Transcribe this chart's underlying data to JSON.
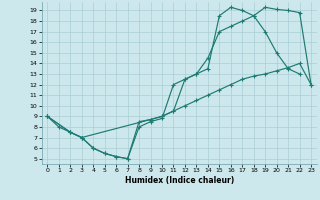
{
  "xlabel": "Humidex (Indice chaleur)",
  "bg_color": "#cce8ec",
  "grid_color": "#aacdd4",
  "line_color": "#1e7a72",
  "xlim": [
    -0.5,
    23.5
  ],
  "ylim": [
    4.5,
    19.8
  ],
  "xticks": [
    0,
    1,
    2,
    3,
    4,
    5,
    6,
    7,
    8,
    9,
    10,
    11,
    12,
    13,
    14,
    15,
    16,
    17,
    18,
    19,
    20,
    21,
    22,
    23
  ],
  "yticks": [
    5,
    6,
    7,
    8,
    9,
    10,
    11,
    12,
    13,
    14,
    15,
    16,
    17,
    18,
    19
  ],
  "line1_x": [
    0,
    1,
    2,
    3,
    4,
    5,
    6,
    7,
    8,
    9,
    10,
    11,
    12,
    13,
    14,
    15,
    16,
    17,
    18,
    19,
    20,
    21,
    22,
    23
  ],
  "line1_y": [
    9,
    8,
    7.5,
    7,
    6,
    5.5,
    5.2,
    5,
    8.5,
    8.7,
    9,
    9.5,
    12.5,
    13,
    14.5,
    17,
    17.5,
    18,
    18.5,
    19.3,
    19.1,
    19.0,
    18.8,
    12
  ],
  "line2_x": [
    0,
    2,
    3,
    4,
    5,
    6,
    7,
    8,
    9,
    10,
    11,
    12,
    13,
    14,
    15,
    16,
    17,
    18,
    19,
    20,
    21,
    22
  ],
  "line2_y": [
    9,
    7.5,
    7,
    6,
    5.5,
    5.2,
    5,
    8,
    8.5,
    8.8,
    12,
    12.5,
    13,
    13.5,
    18.5,
    19.3,
    19.0,
    18.5,
    17.0,
    15.0,
    13.5,
    13.0
  ],
  "line3_x": [
    0,
    2,
    3,
    9,
    10,
    11,
    12,
    13,
    14,
    15,
    16,
    17,
    18,
    19,
    20,
    21,
    22,
    23
  ],
  "line3_y": [
    9,
    7.5,
    7,
    8.7,
    9,
    9.5,
    10,
    10.5,
    11,
    11.5,
    12,
    12.5,
    12.8,
    13.0,
    13.3,
    13.6,
    14.0,
    12
  ]
}
